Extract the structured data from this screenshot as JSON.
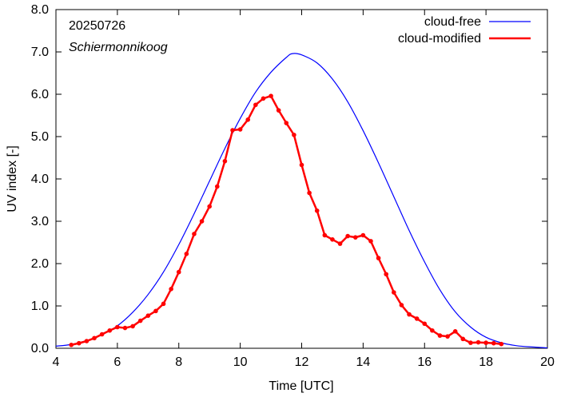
{
  "chart_data": {
    "type": "line",
    "title": "",
    "annotations": [
      "20250726",
      "Schiermonnikoog"
    ],
    "xlabel": "Time  [UTC]",
    "ylabel": "UV index  [-]",
    "xlim": [
      4,
      20
    ],
    "ylim": [
      0,
      8
    ],
    "xticks": [
      "4",
      "6",
      "8",
      "10",
      "12",
      "14",
      "16",
      "18",
      "20"
    ],
    "yticks": [
      "0.0",
      "1.0",
      "2.0",
      "3.0",
      "4.0",
      "5.0",
      "6.0",
      "7.0",
      "8.0"
    ],
    "grid": false,
    "legend_position": "top-right",
    "series": [
      {
        "name": "cloud-free",
        "color": "#0000ff",
        "marker": "none",
        "x": [
          4.0,
          4.5,
          5.0,
          5.5,
          6.0,
          6.5,
          7.0,
          7.5,
          8.0,
          8.5,
          9.0,
          9.5,
          10.0,
          10.5,
          11.0,
          11.5,
          11.7,
          12.0,
          12.5,
          13.0,
          13.5,
          14.0,
          14.5,
          15.0,
          15.5,
          16.0,
          16.5,
          17.0,
          17.5,
          18.0,
          18.5,
          19.0,
          19.5,
          20.0
        ],
        "values": [
          0.05,
          0.09,
          0.18,
          0.32,
          0.53,
          0.85,
          1.27,
          1.8,
          2.45,
          3.18,
          3.95,
          4.72,
          5.43,
          6.05,
          6.52,
          6.87,
          6.96,
          6.93,
          6.74,
          6.36,
          5.82,
          5.14,
          4.38,
          3.58,
          2.78,
          2.04,
          1.38,
          0.86,
          0.5,
          0.26,
          0.13,
          0.06,
          0.03,
          0.01
        ]
      },
      {
        "name": "cloud-modified",
        "color": "#ff0000",
        "marker": "circle",
        "x": [
          4.5,
          4.75,
          5.0,
          5.25,
          5.5,
          5.75,
          6.0,
          6.25,
          6.5,
          6.75,
          7.0,
          7.25,
          7.5,
          7.75,
          8.0,
          8.25,
          8.5,
          8.75,
          9.0,
          9.25,
          9.5,
          9.75,
          10.0,
          10.25,
          10.5,
          10.75,
          11.0,
          11.25,
          11.5,
          11.75,
          12.0,
          12.25,
          12.5,
          12.75,
          13.0,
          13.25,
          13.5,
          13.75,
          14.0,
          14.25,
          14.5,
          14.75,
          15.0,
          15.25,
          15.5,
          15.75,
          16.0,
          16.25,
          16.5,
          16.75,
          17.0,
          17.25,
          17.5,
          17.75,
          18.0,
          18.25,
          18.5
        ],
        "values": [
          0.08,
          0.12,
          0.17,
          0.24,
          0.33,
          0.42,
          0.5,
          0.48,
          0.52,
          0.65,
          0.77,
          0.88,
          1.05,
          1.4,
          1.8,
          2.23,
          2.7,
          3.0,
          3.35,
          3.82,
          4.42,
          5.15,
          5.17,
          5.4,
          5.75,
          5.9,
          5.96,
          5.62,
          5.32,
          5.04,
          4.33,
          3.67,
          3.25,
          2.67,
          2.57,
          2.47,
          2.65,
          2.62,
          2.67,
          2.53,
          2.13,
          1.75,
          1.32,
          1.02,
          0.8,
          0.7,
          0.58,
          0.42,
          0.3,
          0.28,
          0.4,
          0.22,
          0.13,
          0.14,
          0.13,
          0.12,
          0.1
        ]
      }
    ]
  }
}
